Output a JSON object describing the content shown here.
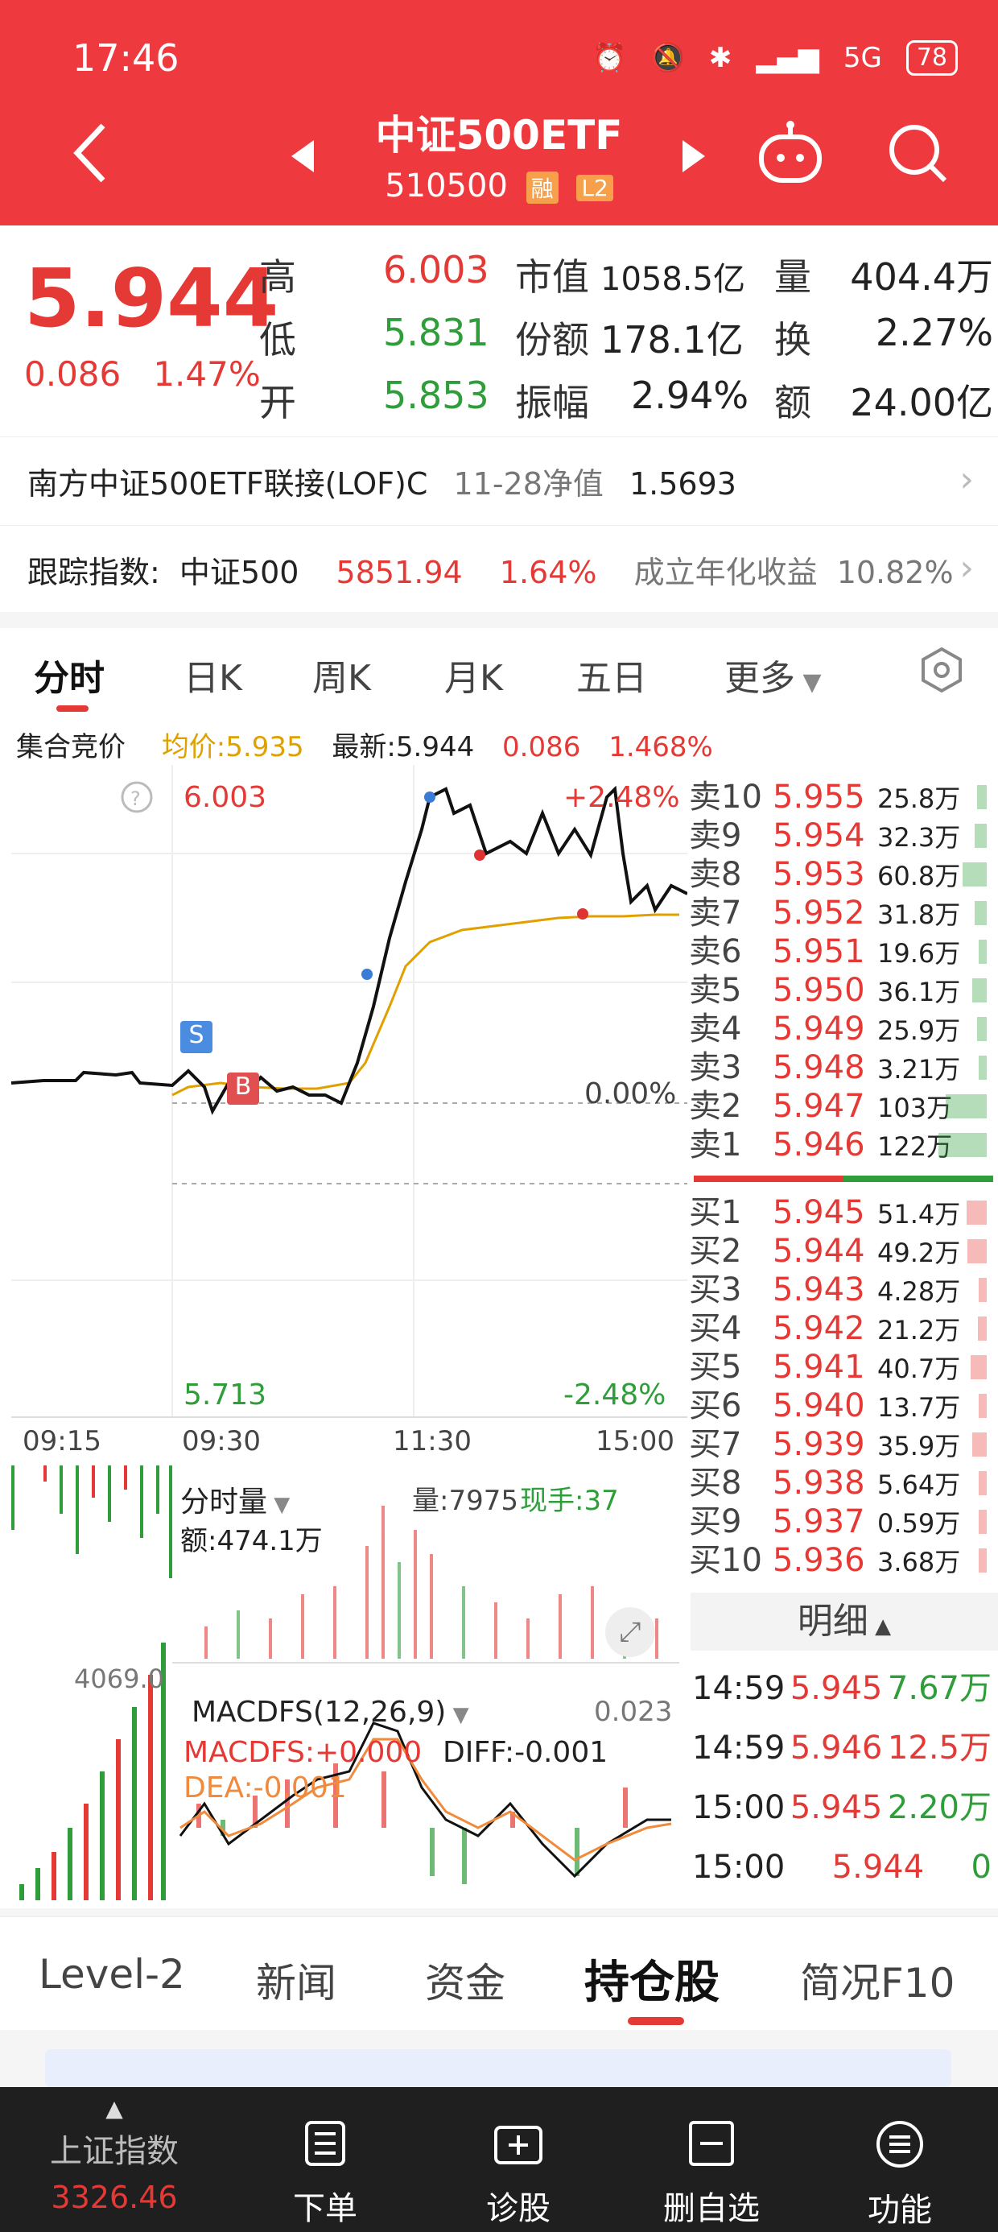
{
  "status": {
    "time": "17:46",
    "battery": "78",
    "network": "5G"
  },
  "header": {
    "title": "中证500ETF",
    "code": "510500",
    "tag_margin": "融",
    "tag_level": "L2"
  },
  "quote": {
    "price": "5.944",
    "change": "0.086",
    "change_pct": "1.47%",
    "high_label": "高",
    "high": "6.003",
    "low_label": "低",
    "low": "5.831",
    "open_label": "开",
    "open": "5.853",
    "mktcap_label": "市值",
    "mktcap": "1058.5亿",
    "share_label": "份额",
    "share": "178.1亿",
    "amp_label": "振幅",
    "amp": "2.94%",
    "vol_label": "量",
    "vol": "404.4万",
    "turn_label": "换",
    "turn": "2.27%",
    "amt_label": "额",
    "amt": "24.00亿"
  },
  "fund": {
    "name": "南方中证500ETF联接(LOF)C",
    "nav_label": "11-28净值",
    "nav": "1.5693"
  },
  "index": {
    "label": "跟踪指数:",
    "name": "中证500",
    "value": "5851.94",
    "pct": "1.64%",
    "annual_label": "成立年化收益",
    "annual": "10.82%"
  },
  "chart_tabs": [
    "分时",
    "日K",
    "周K",
    "月K",
    "五日",
    "更多"
  ],
  "info": {
    "auction": "集合竞价",
    "avg": "均价:5.935",
    "latest": "最新:5.944",
    "chg": "0.086",
    "pct": "1.468%"
  },
  "chart": {
    "max": "6.003",
    "min": "5.713",
    "max_pct": "+2.48%",
    "min_pct": "-2.48%",
    "zero_pct": "0.00%",
    "times": [
      "09:15",
      "09:30",
      "11:30",
      "15:00"
    ],
    "vol_label": "分时量",
    "vol_value": "量:7975",
    "hand": "现手:37",
    "amount": "额:474.1万",
    "left_vol": "4069.0",
    "macd_label": "MACDFS(12,26,9)",
    "macd_value": "0.023",
    "macdfs": "MACDFS:+0.000",
    "diff": "DIFF:-0.001",
    "dea": "DEA:-0.001",
    "badge_s": "S",
    "badge_b": "B"
  },
  "sells": [
    {
      "label": "卖10",
      "price": "5.955",
      "vol": "25.8万",
      "fill": 0.2
    },
    {
      "label": "卖9",
      "price": "5.954",
      "vol": "32.3万",
      "fill": 0.25
    },
    {
      "label": "卖8",
      "price": "5.953",
      "vol": "60.8万",
      "fill": 0.5
    },
    {
      "label": "卖7",
      "price": "5.952",
      "vol": "31.8万",
      "fill": 0.25
    },
    {
      "label": "卖6",
      "price": "5.951",
      "vol": "19.6万",
      "fill": 0.15
    },
    {
      "label": "卖5",
      "price": "5.950",
      "vol": "36.1万",
      "fill": 0.3
    },
    {
      "label": "卖4",
      "price": "5.949",
      "vol": "25.9万",
      "fill": 0.2
    },
    {
      "label": "卖3",
      "price": "5.948",
      "vol": "3.21万",
      "fill": 0.05
    },
    {
      "label": "卖2",
      "price": "5.947",
      "vol": "103万",
      "fill": 0.85
    },
    {
      "label": "卖1",
      "price": "5.946",
      "vol": "122万",
      "fill": 1.0
    }
  ],
  "buys": [
    {
      "label": "买1",
      "price": "5.945",
      "vol": "51.4万",
      "fill": 0.42
    },
    {
      "label": "买2",
      "price": "5.944",
      "vol": "49.2万",
      "fill": 0.4
    },
    {
      "label": "买3",
      "price": "5.943",
      "vol": "4.28万",
      "fill": 0.05
    },
    {
      "label": "买4",
      "price": "5.942",
      "vol": "21.2万",
      "fill": 0.18
    },
    {
      "label": "买5",
      "price": "5.941",
      "vol": "40.7万",
      "fill": 0.33
    },
    {
      "label": "买6",
      "price": "5.940",
      "vol": "13.7万",
      "fill": 0.12
    },
    {
      "label": "买7",
      "price": "5.939",
      "vol": "35.9万",
      "fill": 0.3
    },
    {
      "label": "买8",
      "price": "5.938",
      "vol": "5.64万",
      "fill": 0.06
    },
    {
      "label": "买9",
      "price": "5.937",
      "vol": "0.59万",
      "fill": 0.02
    },
    {
      "label": "买10",
      "price": "5.936",
      "vol": "3.68万",
      "fill": 0.04
    }
  ],
  "detail": {
    "label": "明细",
    "rows": [
      {
        "time": "14:59",
        "price": "5.945",
        "vol": "7.67万",
        "color": "green"
      },
      {
        "time": "14:59",
        "price": "5.946",
        "vol": "12.5万",
        "color": "red"
      },
      {
        "time": "15:00",
        "price": "5.945",
        "vol": "2.20万",
        "color": "green"
      },
      {
        "time": "15:00",
        "price": "5.944",
        "vol": "0",
        "color": "green"
      }
    ]
  },
  "bottom_tabs": [
    "Level-2",
    "新闻",
    "资金",
    "持仓股",
    "简况F10"
  ],
  "nav": [
    {
      "label": "上证指数",
      "value": "3326.46",
      "icon": "triangle-up-icon"
    },
    {
      "label": "下单",
      "icon": "document-icon"
    },
    {
      "label": "诊股",
      "icon": "plus-box-icon"
    },
    {
      "label": "删自选",
      "icon": "minus-box-icon"
    },
    {
      "label": "功能",
      "icon": "menu-circle-icon"
    }
  ]
}
